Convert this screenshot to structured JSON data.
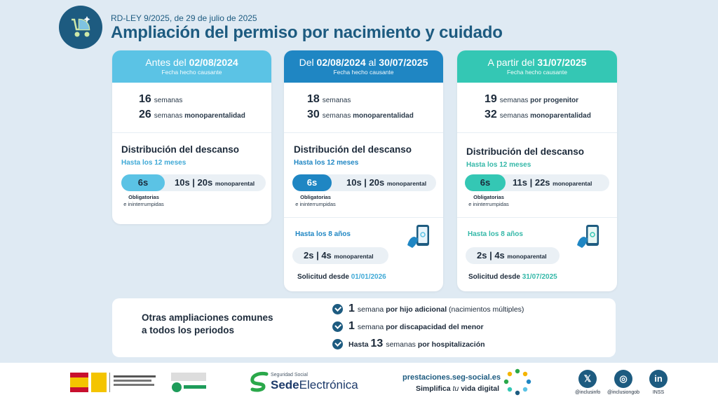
{
  "header": {
    "kicker": "RD-LEY 9/2025, de 29 de julio de 2025",
    "title": "Ampliación del permiso por nacimiento y cuidado",
    "icon": "baby-stroller-icon"
  },
  "colors": {
    "brand": "#1d5b80",
    "period1": "#5bc3e5",
    "period2": "#1f86c3",
    "period3": "#34c7b4"
  },
  "periods": [
    {
      "head_pre": "Antes del ",
      "head_date": "02/08/2024",
      "head_post": "",
      "head_sub": "Fecha hecho causante",
      "w1_num": "16",
      "w1_a": "semanas",
      "w1_b": "",
      "w2_num": "26",
      "w2_a": "semanas ",
      "w2_b": "monoparentalidad",
      "dist_title": "Distribución del descanso",
      "hasta12": "Hasta los 12 meses",
      "oblig_weeks": "6s",
      "rest": "10s  | 20s ",
      "rest_small": "monoparental",
      "oblig_1": "Obligatorias",
      "oblig_2": "e ininterrumpidas"
    },
    {
      "head_pre": "Del ",
      "head_date": "02/08/2024",
      "head_mid": " al ",
      "head_date2": "30/07/2025",
      "head_sub": "Fecha hecho causante",
      "w1_num": "18",
      "w1_a": "semanas",
      "w1_b": "",
      "w2_num": "30",
      "w2_a": "semanas ",
      "w2_b": "monoparentalidad",
      "dist_title": "Distribución del descanso",
      "hasta12": "Hasta los 12 meses",
      "oblig_weeks": "6s",
      "rest": "10s  | 20s ",
      "rest_small": "monoparental",
      "oblig_1": "Obligatorias",
      "oblig_2": "e ininterrumpidas",
      "hasta8": "Hasta los 8 años",
      "extra": "2s  | 4s ",
      "extra_small": "monoparental",
      "solic": "Solicitud desde ",
      "solic_date": "01/01/2026"
    },
    {
      "head_pre": "A partir del ",
      "head_date": "31/07/2025",
      "head_sub": "Fecha hecho causante",
      "w1_num": "19",
      "w1_a": "semanas ",
      "w1_b": "por progenitor",
      "w2_num": "32",
      "w2_a": "semanas ",
      "w2_b": "monoparentalidad",
      "dist_title": "Distribución del descanso",
      "hasta12": "Hasta los 12 meses",
      "oblig_weeks": "6s",
      "rest": "11s  | 22s ",
      "rest_small": "monoparental",
      "oblig_1": "Obligatorias",
      "oblig_2": "e ininterrumpidas",
      "hasta8": "Hasta los 8 años",
      "extra": "2s  | 4s ",
      "extra_small": "monoparental",
      "solic": "Solicitud desde ",
      "solic_date": "31/07/2025"
    }
  ],
  "otras": {
    "title_1": "Otras ampliaciones comunes",
    "title_2": "a todos los periodos",
    "items": [
      {
        "pre": "",
        "num": "1",
        "a": "semana ",
        "b": "por hijo adicional",
        "c": " (nacimientos múltiples)"
      },
      {
        "pre": "",
        "num": "1",
        "a": "semana ",
        "b": "por discapacidad del menor",
        "c": ""
      },
      {
        "pre": "Hasta ",
        "num": "13",
        "a": "semanas ",
        "b": "por hospitalización",
        "c": ""
      }
    ]
  },
  "footer": {
    "gob_label": "GOBIERNO DE ESPAÑA",
    "ministry": "MINISTERIO DE INCLUSIÓN, SEGURIDAD SOCIAL Y MIGRACIONES",
    "se_small": "Seguridad Social",
    "se_big_a": "Sede",
    "se_big_b": "Electrónica",
    "url": "prestaciones.seg-social.es",
    "slogan_a": "Simplifica ",
    "slogan_b": "tu",
    "slogan_c": " vida digital",
    "social": [
      {
        "icon": "x-icon",
        "glyph": "𝕏",
        "label": "@inclusinfo"
      },
      {
        "icon": "instagram-icon",
        "glyph": "◎",
        "label": "@inclusiongob"
      },
      {
        "icon": "linkedin-icon",
        "glyph": "in",
        "label": "INSS"
      }
    ]
  }
}
